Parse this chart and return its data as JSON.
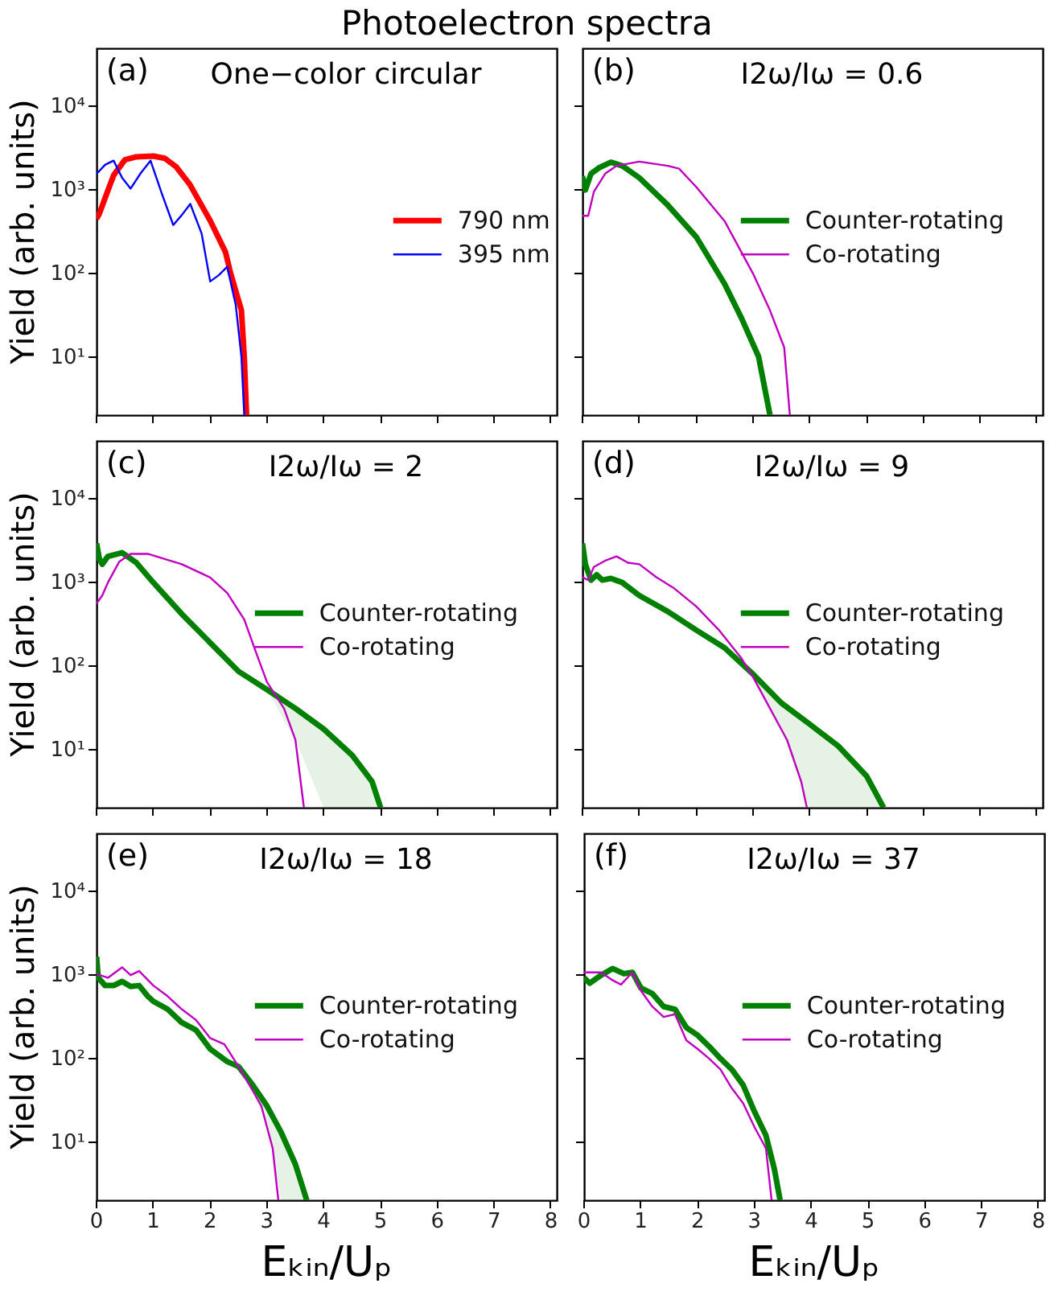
{
  "chart_data": [
    {
      "type": "line",
      "title": "Photoelectron spectra",
      "annotations": [
        "(a)",
        "One−color circular"
      ],
      "ylabel": "Yield (arb. units)",
      "log": true,
      "legend": "right",
      "tick_labels": "y",
      "xlim": [
        0,
        8.1
      ],
      "ylim": [
        2,
        50000
      ],
      "xticks": [
        0,
        1,
        2,
        3,
        4,
        5,
        6,
        7,
        8
      ],
      "yticks": [
        {
          "value": 10,
          "label": "10¹"
        },
        {
          "value": 100,
          "label": "10²"
        },
        {
          "value": 1000,
          "label": "10³"
        },
        {
          "value": 10000,
          "label": "10⁴"
        }
      ],
      "series": [
        {
          "name": "790 nm",
          "color": "#ff0000",
          "x": [
            0,
            0.05,
            0.15,
            0.3,
            0.5,
            0.7,
            1.0,
            1.2,
            1.4,
            1.64,
            1.8,
            2.0,
            2.27,
            2.36,
            2.55,
            2.6,
            2.64
          ],
          "values": [
            450,
            520,
            800,
            1500,
            2300,
            2500,
            2550,
            2400,
            1900,
            1170,
            750,
            430,
            180,
            100,
            36,
            10,
            2
          ]
        },
        {
          "name": "395 nm",
          "color": "#0000ff",
          "x": [
            0,
            0.15,
            0.3,
            0.45,
            0.6,
            0.78,
            0.95,
            1.15,
            1.35,
            1.5,
            1.65,
            1.85,
            2.0,
            2.15,
            2.3,
            2.45,
            2.55,
            2.6
          ],
          "values": [
            1560,
            2000,
            2250,
            1400,
            1040,
            1600,
            2250,
            900,
            380,
            500,
            680,
            300,
            80,
            95,
            120,
            42,
            10,
            2
          ]
        }
      ]
    },
    {
      "type": "line",
      "annotations": [
        "(b)",
        "I2ω/Iω = 0.6"
      ],
      "log": true,
      "legend": "right",
      "tick_labels": false,
      "xlim": [
        0,
        8.1
      ],
      "ylim": [
        2,
        50000
      ],
      "xticks": [
        0,
        1,
        2,
        3,
        4,
        5,
        6,
        7,
        8
      ],
      "yticks": [
        {
          "value": 10,
          "label": null
        },
        {
          "value": 100,
          "label": null
        },
        {
          "value": 1000,
          "label": null
        },
        {
          "value": 10000,
          "label": null
        }
      ],
      "series": [
        {
          "name": "Counter-rotating",
          "color": "#008000",
          "x": [
            0,
            0.05,
            0.15,
            0.3,
            0.5,
            0.7,
            1.0,
            1.5,
            2.0,
            2.5,
            2.8,
            3.1,
            3.3
          ],
          "values": [
            1460,
            1000,
            1570,
            1860,
            2150,
            1950,
            1400,
            660,
            275,
            75,
            29,
            10,
            2
          ]
        },
        {
          "name": "Co-rotating",
          "color": "#bf00bf",
          "x": [
            0,
            0.1,
            0.2,
            0.4,
            0.6,
            1.0,
            1.5,
            1.7,
            2.0,
            2.5,
            3.0,
            3.3,
            3.55,
            3.65
          ],
          "values": [
            490,
            490,
            950,
            1570,
            1950,
            2190,
            1950,
            1800,
            1090,
            425,
            100,
            36,
            13,
            2
          ]
        }
      ]
    },
    {
      "type": "line",
      "annotations": [
        "(c)",
        "I2ω/Iω = 2"
      ],
      "ylabel": "Yield (arb. units)",
      "log": true,
      "legend": "right",
      "tick_labels": "y",
      "xlim": [
        0,
        8.1
      ],
      "ylim": [
        2,
        50000
      ],
      "xticks": [
        0,
        1,
        2,
        3,
        4,
        5,
        6,
        7,
        8
      ],
      "yticks": [
        {
          "value": 10,
          "label": "10¹"
        },
        {
          "value": 100,
          "label": "10²"
        },
        {
          "value": 1000,
          "label": "10³"
        },
        {
          "value": 10000,
          "label": "10⁴"
        }
      ],
      "series": [
        {
          "name": "Counter-rotating",
          "color": "#008000",
          "x": [
            0,
            0.05,
            0.1,
            0.2,
            0.45,
            0.7,
            1.0,
            1.5,
            2.0,
            2.5,
            3.0,
            3.5,
            4.0,
            4.5,
            4.85,
            5.0
          ],
          "values": [
            2950,
            1920,
            1660,
            2060,
            2280,
            1730,
            1000,
            420,
            190,
            86,
            52,
            31,
            17.5,
            8.5,
            4.1,
            2
          ],
          "lower": [
            null,
            null,
            null,
            null,
            null,
            null,
            null,
            null,
            null,
            null,
            52,
            13,
            2,
            2,
            2,
            2
          ],
          "upper": [
            null,
            null,
            null,
            null,
            null,
            null,
            null,
            null,
            null,
            null,
            52,
            31,
            17.5,
            8.5,
            4.1,
            2
          ]
        },
        {
          "name": "Co-rotating",
          "color": "#bf00bf",
          "x": [
            0,
            0.1,
            0.2,
            0.4,
            0.6,
            0.9,
            1.5,
            2.0,
            2.3,
            2.6,
            2.8,
            3.0,
            3.3,
            3.5,
            3.65
          ],
          "values": [
            560,
            700,
            1000,
            1780,
            2210,
            2210,
            1660,
            1150,
            750,
            360,
            150,
            64,
            31,
            13,
            2
          ]
        }
      ]
    },
    {
      "type": "line",
      "annotations": [
        "(d)",
        "I2ω/Iω = 9"
      ],
      "log": true,
      "legend": "right",
      "tick_labels": false,
      "xlim": [
        0,
        8.1
      ],
      "ylim": [
        2,
        50000
      ],
      "xticks": [
        0,
        1,
        2,
        3,
        4,
        5,
        6,
        7,
        8
      ],
      "yticks": [
        {
          "value": 10,
          "label": null
        },
        {
          "value": 100,
          "label": null
        },
        {
          "value": 1000,
          "label": null
        },
        {
          "value": 10000,
          "label": null
        }
      ],
      "series": [
        {
          "name": "Counter-rotating",
          "color": "#008000",
          "x": [
            0,
            0.05,
            0.15,
            0.25,
            0.35,
            0.5,
            0.7,
            1.0,
            1.5,
            2.0,
            2.5,
            3.0,
            3.5,
            4.0,
            4.5,
            5.0,
            5.3
          ],
          "values": [
            2950,
            1660,
            1070,
            1240,
            1070,
            1120,
            1000,
            700,
            450,
            270,
            165,
            80,
            36,
            20,
            11,
            4.8,
            2
          ],
          "lower": [
            null,
            null,
            null,
            null,
            null,
            null,
            null,
            null,
            null,
            null,
            null,
            74,
            17,
            2,
            2,
            2,
            2
          ],
          "upper": [
            null,
            null,
            null,
            null,
            null,
            null,
            null,
            null,
            null,
            null,
            null,
            80,
            36,
            20,
            11,
            4.8,
            2
          ]
        },
        {
          "name": "Co-rotating",
          "color": "#bf00bf",
          "x": [
            0,
            0.1,
            0.2,
            0.4,
            0.6,
            0.8,
            1.0,
            1.3,
            1.6,
            2.0,
            2.4,
            2.8,
            3.0,
            3.3,
            3.6,
            3.85,
            3.95
          ],
          "values": [
            1160,
            1070,
            1540,
            1830,
            2060,
            1730,
            1660,
            1160,
            865,
            520,
            270,
            123,
            74,
            31,
            13,
            4.1,
            2
          ]
        }
      ]
    },
    {
      "type": "line",
      "annotations": [
        "(e)",
        "I2ω/Iω = 18"
      ],
      "xlabel": "Eₖᵢₙ/Uₚ",
      "ylabel": "Yield (arb. units)",
      "log": true,
      "legend": "right",
      "xlim": [
        0,
        8.1
      ],
      "ylim": [
        2,
        50000
      ],
      "xticks": [
        0,
        1,
        2,
        3,
        4,
        5,
        6,
        7,
        8
      ],
      "yticks": [
        {
          "value": 10,
          "label": "10¹"
        },
        {
          "value": 100,
          "label": "10²"
        },
        {
          "value": 1000,
          "label": "10³"
        },
        {
          "value": 10000,
          "label": "10⁴"
        }
      ],
      "series": [
        {
          "name": "Counter-rotating",
          "color": "#008000",
          "x": [
            0,
            0.03,
            0.15,
            0.3,
            0.45,
            0.6,
            0.75,
            0.9,
            1.0,
            1.25,
            1.5,
            1.75,
            2.0,
            2.3,
            2.5,
            2.75,
            3.0,
            3.25,
            3.5,
            3.7
          ],
          "values": [
            1660,
            930,
            750,
            750,
            840,
            730,
            750,
            560,
            485,
            390,
            270,
            220,
            130,
            92,
            80,
            48,
            27,
            13,
            5.4,
            2
          ],
          "lower": [
            null,
            null,
            null,
            null,
            null,
            null,
            null,
            null,
            null,
            null,
            null,
            null,
            null,
            null,
            null,
            41,
            17,
            2,
            2,
            2
          ],
          "upper": [
            null,
            null,
            null,
            null,
            null,
            null,
            null,
            null,
            null,
            null,
            null,
            null,
            null,
            null,
            null,
            48,
            27,
            13,
            5.4,
            2
          ]
        },
        {
          "name": "Co-rotating",
          "color": "#bf00bf",
          "x": [
            0,
            0.2,
            0.45,
            0.6,
            0.75,
            1.0,
            1.25,
            1.5,
            1.75,
            2.0,
            2.25,
            2.5,
            2.75,
            2.9,
            3.1,
            3.2
          ],
          "values": [
            1030,
            930,
            1240,
            1000,
            1120,
            750,
            560,
            390,
            290,
            176,
            148,
            80,
            41,
            27,
            8.4,
            2
          ]
        }
      ]
    },
    {
      "type": "line",
      "annotations": [
        "(f)",
        "I2ω/Iω = 37"
      ],
      "xlabel": "Eₖᵢₙ/Uₚ",
      "log": true,
      "legend": "right",
      "tick_labels": "x",
      "xlim": [
        0,
        8.1
      ],
      "ylim": [
        2,
        50000
      ],
      "xticks": [
        0,
        1,
        2,
        3,
        4,
        5,
        6,
        7,
        8
      ],
      "yticks": [
        {
          "value": 10,
          "label": null
        },
        {
          "value": 100,
          "label": null
        },
        {
          "value": 1000,
          "label": null
        },
        {
          "value": 10000,
          "label": null
        }
      ],
      "series": [
        {
          "name": "Counter-rotating",
          "color": "#008000",
          "x": [
            0,
            0.1,
            0.3,
            0.5,
            0.7,
            0.85,
            1.0,
            1.2,
            1.4,
            1.6,
            1.8,
            2.0,
            2.2,
            2.4,
            2.6,
            2.8,
            3.0,
            3.2,
            3.35,
            3.45
          ],
          "values": [
            930,
            800,
            1000,
            1200,
            1040,
            1080,
            700,
            600,
            420,
            390,
            235,
            190,
            140,
            100,
            74,
            48,
            23,
            12,
            4.7,
            2
          ]
        },
        {
          "name": "Co-rotating",
          "color": "#bf00bf",
          "x": [
            0,
            0.3,
            0.5,
            0.65,
            0.85,
            1.0,
            1.2,
            1.4,
            1.6,
            1.8,
            2.0,
            2.2,
            2.4,
            2.6,
            2.8,
            3.0,
            3.2,
            3.3
          ],
          "values": [
            1080,
            1080,
            870,
            770,
            1080,
            650,
            420,
            315,
            340,
            165,
            130,
            100,
            74,
            44,
            29,
            15,
            8.4,
            2
          ]
        }
      ]
    }
  ]
}
